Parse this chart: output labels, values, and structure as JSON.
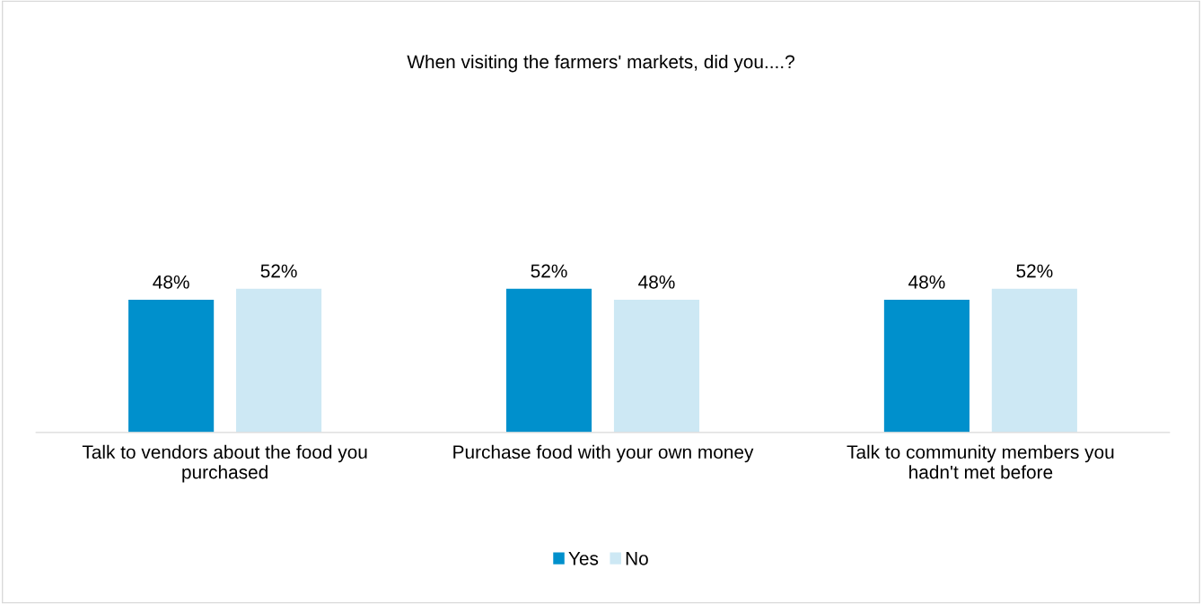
{
  "chart_data": {
    "type": "bar",
    "title": "When visiting the farmers' markets, did you....?",
    "categories": [
      "Talk to vendors about the food you purchased",
      "Purchase food with your own money",
      "Talk to community members you hadn't met before"
    ],
    "series": [
      {
        "name": "Yes",
        "color": "#0090cc",
        "values": [
          48,
          52,
          48
        ],
        "value_labels": [
          "48%",
          "52%",
          "48%"
        ]
      },
      {
        "name": "No",
        "color": "#cde8f4",
        "values": [
          52,
          48,
          52
        ],
        "value_labels": [
          "52%",
          "48%",
          "52%"
        ]
      }
    ],
    "legend": "bottom",
    "grid": false
  }
}
